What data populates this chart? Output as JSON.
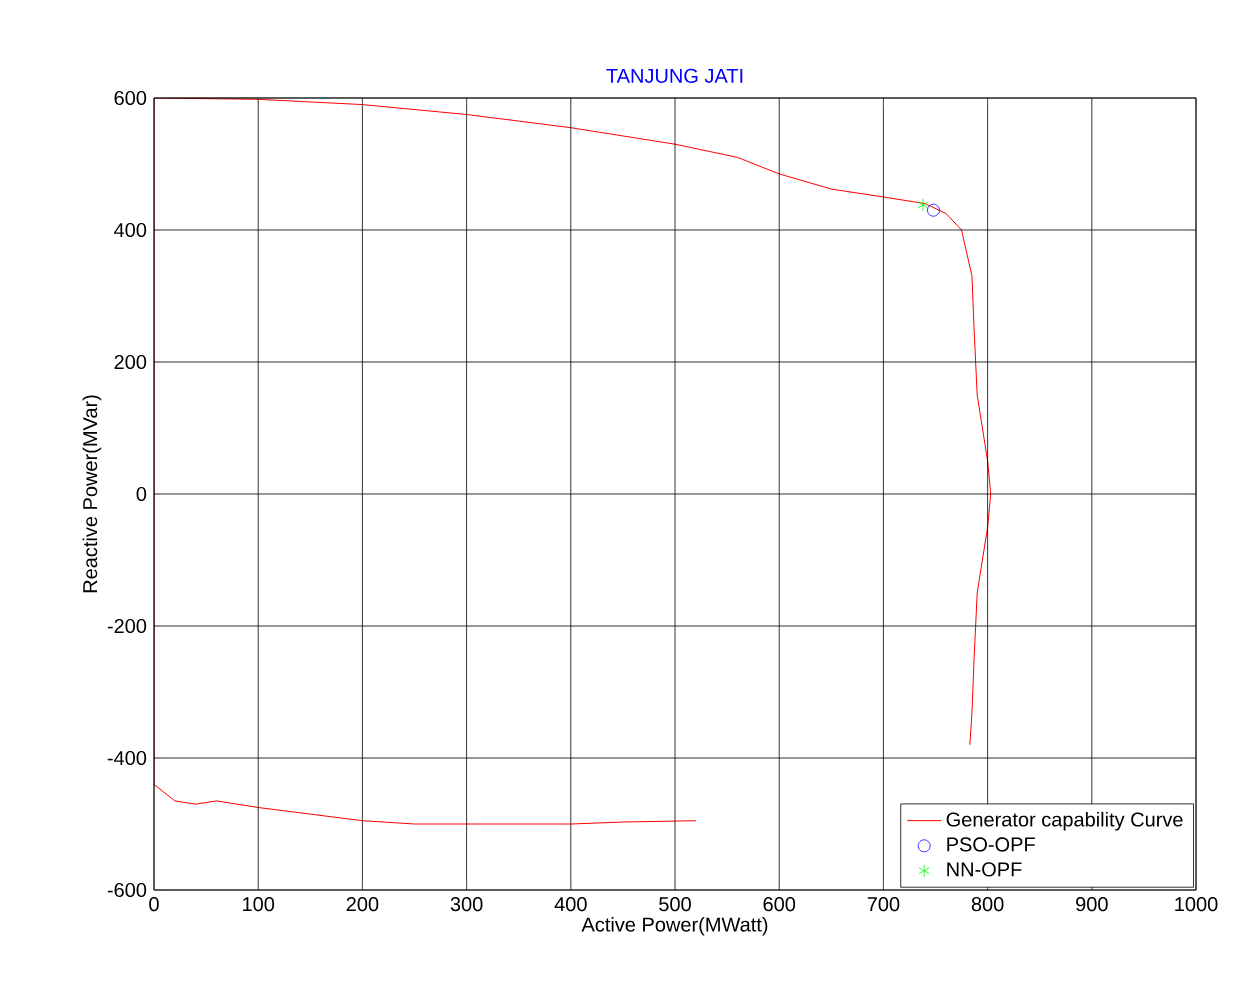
{
  "chart_data": {
    "type": "line",
    "title": "TANJUNG JATI",
    "xlabel": "Active Power(MWatt)",
    "ylabel": "Reactive Power(MVar)",
    "xlim": [
      0,
      1000
    ],
    "ylim": [
      -600,
      600
    ],
    "xticks": [
      0,
      100,
      200,
      300,
      400,
      500,
      600,
      700,
      800,
      900,
      1000
    ],
    "yticks": [
      -600,
      -400,
      -200,
      0,
      200,
      400,
      600
    ],
    "grid": true,
    "legend": "bottom right",
    "series": [
      {
        "name": "Generator capability Curve",
        "marker": "none",
        "color": "#ff0000",
        "x": [
          520,
          450,
          400,
          250,
          200,
          150,
          100,
          60,
          40,
          20,
          0,
          0,
          100,
          200,
          300,
          400,
          500,
          560,
          600,
          650,
          700,
          740,
          760,
          775,
          785,
          787,
          790,
          800,
          803,
          800,
          790,
          787,
          785,
          783
        ],
        "values": [
          -495,
          -497,
          -500,
          -500,
          -495,
          -485,
          -475,
          -465,
          -470,
          -465,
          -440,
          600,
          598,
          590,
          575,
          555,
          530,
          510,
          485,
          462,
          450,
          440,
          425,
          400,
          330,
          250,
          150,
          50,
          0,
          -50,
          -150,
          -250,
          -330,
          -380
        ]
      },
      {
        "name": "PSO-OPF",
        "type": "scatter",
        "marker": "circle",
        "color": "#0000ff",
        "x": [
          748
        ],
        "values": [
          430
        ]
      },
      {
        "name": "NN-OPF",
        "type": "scatter",
        "marker": "cross",
        "color": "#00ff00",
        "x": [
          738
        ],
        "values": [
          438
        ]
      }
    ]
  }
}
